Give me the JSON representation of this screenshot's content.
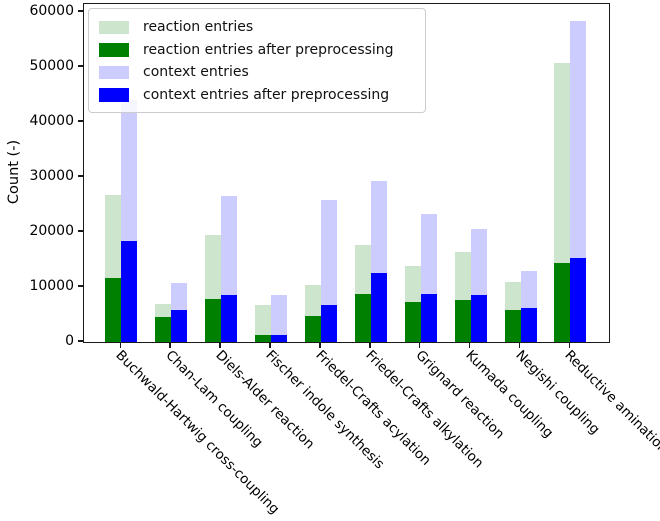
{
  "chart_data": {
    "type": "bar",
    "title": "",
    "xlabel": "",
    "ylabel": "Count (-)",
    "ylim": [
      0,
      61500
    ],
    "yticks": [
      0,
      10000,
      20000,
      30000,
      40000,
      50000,
      60000
    ],
    "grid": false,
    "legend_position": "upper left",
    "categories": [
      "Buchwald-Hartwig cross-coupling",
      "Chan-Lam coupling",
      "Diels-Alder reaction",
      "Fischer indole synthesis",
      "Friedel-Crafts acylation",
      "Friedel-Crafts alkylation",
      "Grignard reaction",
      "Kumada coupling",
      "Negishi coupling",
      "Reductive amination"
    ],
    "series": [
      {
        "name": "reaction entries",
        "color": "#cce5cc",
        "values": [
          26700,
          7000,
          19400,
          6800,
          10300,
          17600,
          13900,
          16300,
          11000,
          50700
        ]
      },
      {
        "name": "reaction entries after preprocessing",
        "color": "#008000",
        "values": [
          11600,
          4600,
          7900,
          1200,
          4700,
          8700,
          7300,
          7600,
          5800,
          14400
        ]
      },
      {
        "name": "context entries",
        "color": "#ccccff",
        "values": [
          44000,
          10700,
          26600,
          8600,
          25800,
          29300,
          23300,
          20600,
          12900,
          58500
        ]
      },
      {
        "name": "context entries after preprocessing",
        "color": "#0000ff",
        "values": [
          18400,
          5800,
          8500,
          1200,
          6800,
          12500,
          8800,
          8600,
          6200,
          15300
        ]
      }
    ]
  }
}
